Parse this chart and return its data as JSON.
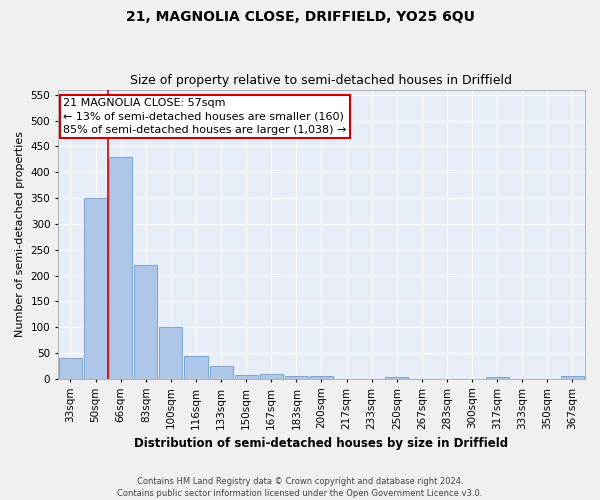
{
  "title": "21, MAGNOLIA CLOSE, DRIFFIELD, YO25 6QU",
  "subtitle": "Size of property relative to semi-detached houses in Driffield",
  "xlabel": "Distribution of semi-detached houses by size in Driffield",
  "ylabel": "Number of semi-detached properties",
  "categories": [
    "33sqm",
    "50sqm",
    "66sqm",
    "83sqm",
    "100sqm",
    "116sqm",
    "133sqm",
    "150sqm",
    "167sqm",
    "183sqm",
    "200sqm",
    "217sqm",
    "233sqm",
    "250sqm",
    "267sqm",
    "283sqm",
    "300sqm",
    "317sqm",
    "333sqm",
    "350sqm",
    "367sqm"
  ],
  "values": [
    40,
    350,
    430,
    220,
    100,
    44,
    25,
    8,
    10,
    5,
    5,
    0,
    0,
    3,
    0,
    0,
    0,
    4,
    0,
    0,
    5
  ],
  "bar_color": "#aec6e8",
  "bar_edge_color": "#5b8fc9",
  "background_color": "#e8eef7",
  "grid_color": "#ffffff",
  "fig_background": "#f0f0f0",
  "vline_x": 1.5,
  "vline_color": "#cc0000",
  "annotation_line1": "21 MAGNOLIA CLOSE: 57sqm",
  "annotation_line2": "← 13% of semi-detached houses are smaller (160)",
  "annotation_line3": "85% of semi-detached houses are larger (1,038) →",
  "annotation_box_color": "#cc0000",
  "ylim": [
    0,
    560
  ],
  "yticks": [
    0,
    50,
    100,
    150,
    200,
    250,
    300,
    350,
    400,
    450,
    500,
    550
  ],
  "footer1": "Contains HM Land Registry data © Crown copyright and database right 2024.",
  "footer2": "Contains public sector information licensed under the Open Government Licence v3.0.",
  "title_fontsize": 10,
  "subtitle_fontsize": 9,
  "axis_label_fontsize": 8,
  "tick_fontsize": 7.5,
  "annotation_fontsize": 8
}
